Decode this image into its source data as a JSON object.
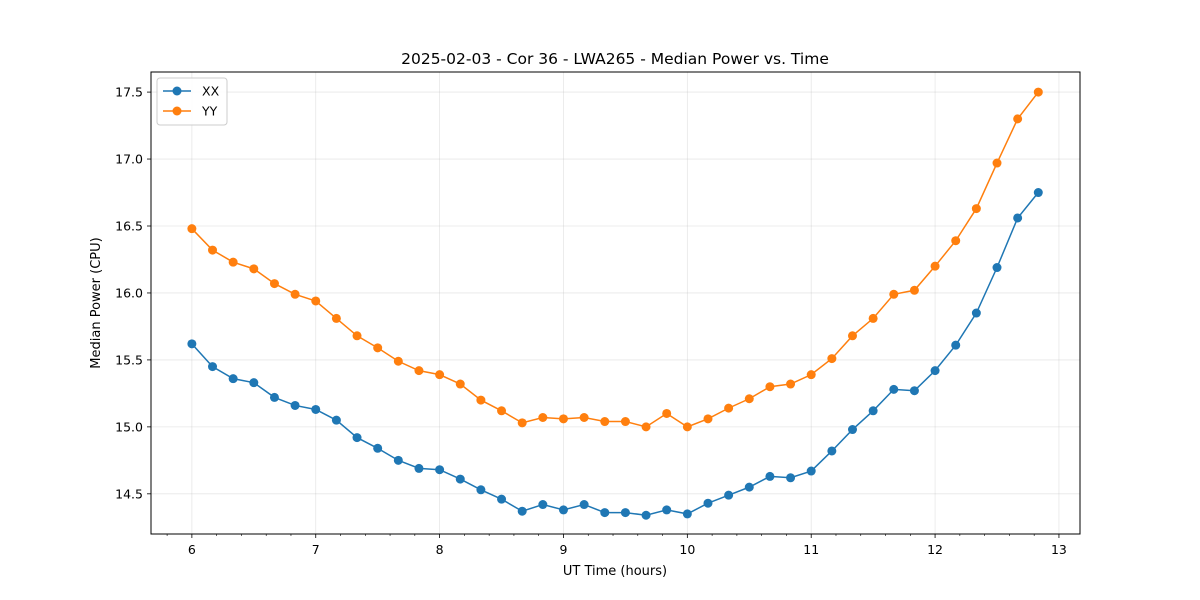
{
  "chart_data": {
    "type": "line",
    "title": "2025-02-03 - Cor 36 - LWA265 - Median Power vs. Time",
    "xlabel": "UT Time (hours)",
    "ylabel": "Median Power (CPU)",
    "xlim": [
      5.67,
      13.17
    ],
    "ylim": [
      14.2,
      17.65
    ],
    "x_ticks": [
      6,
      7,
      8,
      9,
      10,
      11,
      12,
      13
    ],
    "y_ticks": [
      14.5,
      15.0,
      15.5,
      16.0,
      16.5,
      17.0,
      17.5
    ],
    "x_tick_labels": [
      "6",
      "7",
      "8",
      "9",
      "10",
      "11",
      "12",
      "13"
    ],
    "y_tick_labels": [
      "14.5",
      "15.0",
      "15.5",
      "16.0",
      "16.5",
      "17.0",
      "17.5"
    ],
    "grid": true,
    "legend_position": "upper-left",
    "x": [
      6.0,
      6.1667,
      6.3333,
      6.5,
      6.6667,
      6.8333,
      7.0,
      7.1667,
      7.3333,
      7.5,
      7.6667,
      7.8333,
      8.0,
      8.1667,
      8.3333,
      8.5,
      8.6667,
      8.8333,
      9.0,
      9.1667,
      9.3333,
      9.5,
      9.6667,
      9.8333,
      10.0,
      10.1667,
      10.3333,
      10.5,
      10.6667,
      10.8333,
      11.0,
      11.1667,
      11.3333,
      11.5,
      11.6667,
      11.8333,
      12.0,
      12.1667,
      12.3333,
      12.5,
      12.6667,
      12.8333
    ],
    "series": [
      {
        "name": "XX",
        "color": "#1f77b4",
        "values": [
          15.62,
          15.45,
          15.36,
          15.33,
          15.22,
          15.16,
          15.13,
          15.05,
          14.92,
          14.84,
          14.75,
          14.69,
          14.68,
          14.61,
          14.53,
          14.46,
          14.37,
          14.42,
          14.38,
          14.42,
          14.36,
          14.36,
          14.34,
          14.38,
          14.35,
          14.43,
          14.49,
          14.55,
          14.63,
          14.62,
          14.67,
          14.82,
          14.98,
          15.12,
          15.28,
          15.27,
          15.42,
          15.61,
          15.85,
          16.19,
          16.56,
          16.75
        ]
      },
      {
        "name": "YY",
        "color": "#ff7f0e",
        "values": [
          16.48,
          16.32,
          16.23,
          16.18,
          16.07,
          15.99,
          15.94,
          15.81,
          15.68,
          15.59,
          15.49,
          15.42,
          15.39,
          15.32,
          15.2,
          15.12,
          15.03,
          15.07,
          15.06,
          15.07,
          15.04,
          15.04,
          15.0,
          15.1,
          15.0,
          15.06,
          15.14,
          15.21,
          15.3,
          15.32,
          15.39,
          15.51,
          15.68,
          15.81,
          15.99,
          16.02,
          16.2,
          16.39,
          16.63,
          16.97,
          17.3,
          17.5
        ]
      }
    ]
  }
}
